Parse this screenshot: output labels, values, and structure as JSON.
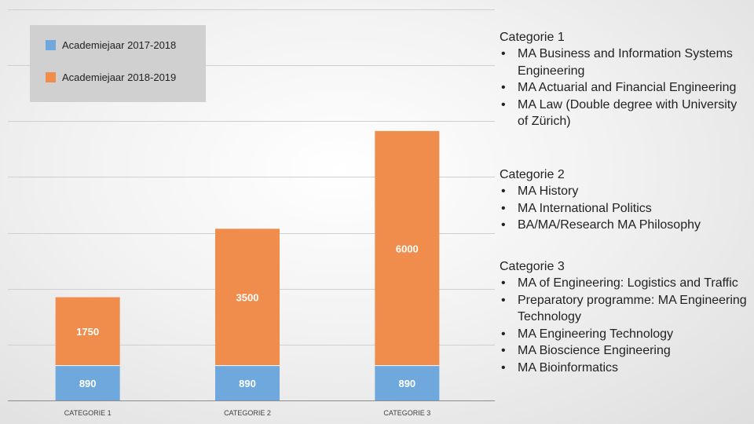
{
  "chart_data": {
    "type": "bar",
    "stacked": true,
    "categories": [
      "CATEGORIE 1",
      "CATEGORIE 2",
      "CATEGORIE 3"
    ],
    "series": [
      {
        "name": "Academiejaar 2017-2018",
        "color": "#6fa8dc",
        "values": [
          890,
          890,
          890
        ]
      },
      {
        "name": "Academiejaar 2018-2019",
        "color": "#f08c4c",
        "values": [
          1750,
          3500,
          6000
        ]
      }
    ],
    "ylim": [
      0,
      10000
    ],
    "grid": true,
    "legend": "top-left",
    "title": "",
    "xlabel": "",
    "ylabel": ""
  },
  "legend": {
    "items": [
      {
        "label": "Academiejaar 2017-2018",
        "color": "#6fa8dc"
      },
      {
        "label": "Academiejaar 2018-2019",
        "color": "#f08c4c"
      }
    ]
  },
  "categories_info": [
    {
      "title": "Categorie 1",
      "items": [
        "MA Business and Information Systems Engineering",
        "MA Actuarial and Financial Engineering",
        "MA Law (Double degree with University of Zürich)"
      ]
    },
    {
      "title": "Categorie 2",
      "items": [
        "MA History",
        "MA International Politics",
        "BA/MA/Research MA Philosophy"
      ]
    },
    {
      "title": "Categorie 3",
      "items": [
        "MA of Engineering: Logistics and Traffic",
        "Preparatory programme: MA Engineering Technology",
        "MA Engineering Technology",
        "MA Bioscience Engineering",
        "MA Bioinformatics"
      ]
    }
  ],
  "bullet_char": "•"
}
